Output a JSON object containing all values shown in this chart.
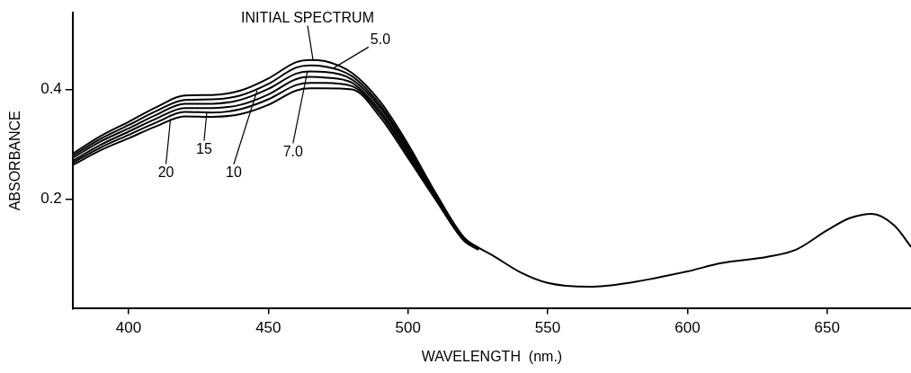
{
  "chart_data": {
    "type": "line",
    "xlabel": "WAVELENGTH  (nm.)",
    "ylabel": "ABSORBANCE",
    "xlim": [
      380,
      680
    ],
    "ylim": [
      0,
      0.54
    ],
    "xticks": [
      400,
      450,
      500,
      550,
      600,
      650
    ],
    "yticks": [
      0.2,
      0.4
    ],
    "grid": false,
    "legend": false,
    "marker": "none",
    "line_style": "solid",
    "series": [
      {
        "color": "#000000",
        "x": [
          380,
          390,
          400,
          410,
          420,
          430,
          440,
          450,
          460,
          465,
          470,
          480,
          490,
          500,
          510,
          520,
          525,
          530,
          540,
          550,
          565,
          580,
          600,
          612,
          629,
          639,
          650,
          658,
          666,
          674,
          680
        ],
        "values": [
          0.283,
          0.315,
          0.341,
          0.368,
          0.389,
          0.39,
          0.398,
          0.42,
          0.45,
          0.454,
          0.452,
          0.43,
          0.378,
          0.3,
          0.21,
          0.13,
          0.112,
          0.098,
          0.067,
          0.047,
          0.04,
          0.048,
          0.068,
          0.083,
          0.095,
          0.108,
          0.143,
          0.165,
          0.173,
          0.152,
          0.113
        ]
      },
      {
        "color": "#000000",
        "x": [
          380,
          390,
          400,
          410,
          420,
          430,
          440,
          450,
          460,
          465,
          470,
          480,
          490,
          500,
          510,
          520,
          525
        ],
        "values": [
          0.279,
          0.31,
          0.335,
          0.361,
          0.381,
          0.382,
          0.389,
          0.41,
          0.44,
          0.444,
          0.442,
          0.424,
          0.372,
          0.295,
          0.208,
          0.129,
          0.111
        ]
      },
      {
        "color": "#000000",
        "x": [
          380,
          390,
          400,
          410,
          420,
          430,
          440,
          450,
          460,
          465,
          470,
          480,
          490,
          500,
          510,
          520,
          525
        ],
        "values": [
          0.275,
          0.305,
          0.329,
          0.354,
          0.374,
          0.374,
          0.381,
          0.401,
          0.429,
          0.433,
          0.432,
          0.418,
          0.367,
          0.29,
          0.205,
          0.128,
          0.11
        ]
      },
      {
        "color": "#000000",
        "x": [
          380,
          390,
          400,
          410,
          420,
          430,
          440,
          450,
          460,
          465,
          470,
          480,
          490,
          500,
          510,
          520,
          525
        ],
        "values": [
          0.27,
          0.299,
          0.323,
          0.347,
          0.366,
          0.366,
          0.372,
          0.391,
          0.419,
          0.423,
          0.422,
          0.412,
          0.361,
          0.285,
          0.203,
          0.126,
          0.11
        ]
      },
      {
        "color": "#000000",
        "x": [
          380,
          390,
          400,
          410,
          420,
          430,
          440,
          450,
          460,
          465,
          470,
          480,
          490,
          500,
          510,
          520,
          525
        ],
        "values": [
          0.266,
          0.294,
          0.317,
          0.34,
          0.359,
          0.358,
          0.364,
          0.382,
          0.408,
          0.412,
          0.412,
          0.406,
          0.356,
          0.28,
          0.2,
          0.125,
          0.109
        ]
      },
      {
        "color": "#000000",
        "x": [
          380,
          390,
          400,
          410,
          420,
          430,
          440,
          450,
          460,
          465,
          470,
          480,
          490,
          500,
          510,
          520,
          525
        ],
        "values": [
          0.262,
          0.289,
          0.311,
          0.333,
          0.351,
          0.35,
          0.355,
          0.372,
          0.398,
          0.402,
          0.402,
          0.4,
          0.35,
          0.275,
          0.198,
          0.124,
          0.108
        ]
      }
    ],
    "annotations": [
      {
        "text": "INITIAL SPECTRUM",
        "x": 466,
        "y": 0.454
      },
      {
        "text": "5.0",
        "x": 473,
        "y": 0.438
      },
      {
        "text": "7.0",
        "x": 464,
        "y": 0.433
      },
      {
        "text": "10",
        "x": 446,
        "y": 0.398
      },
      {
        "text": "15",
        "x": 428,
        "y": 0.359
      },
      {
        "text": "20",
        "x": 415,
        "y": 0.346
      }
    ]
  }
}
